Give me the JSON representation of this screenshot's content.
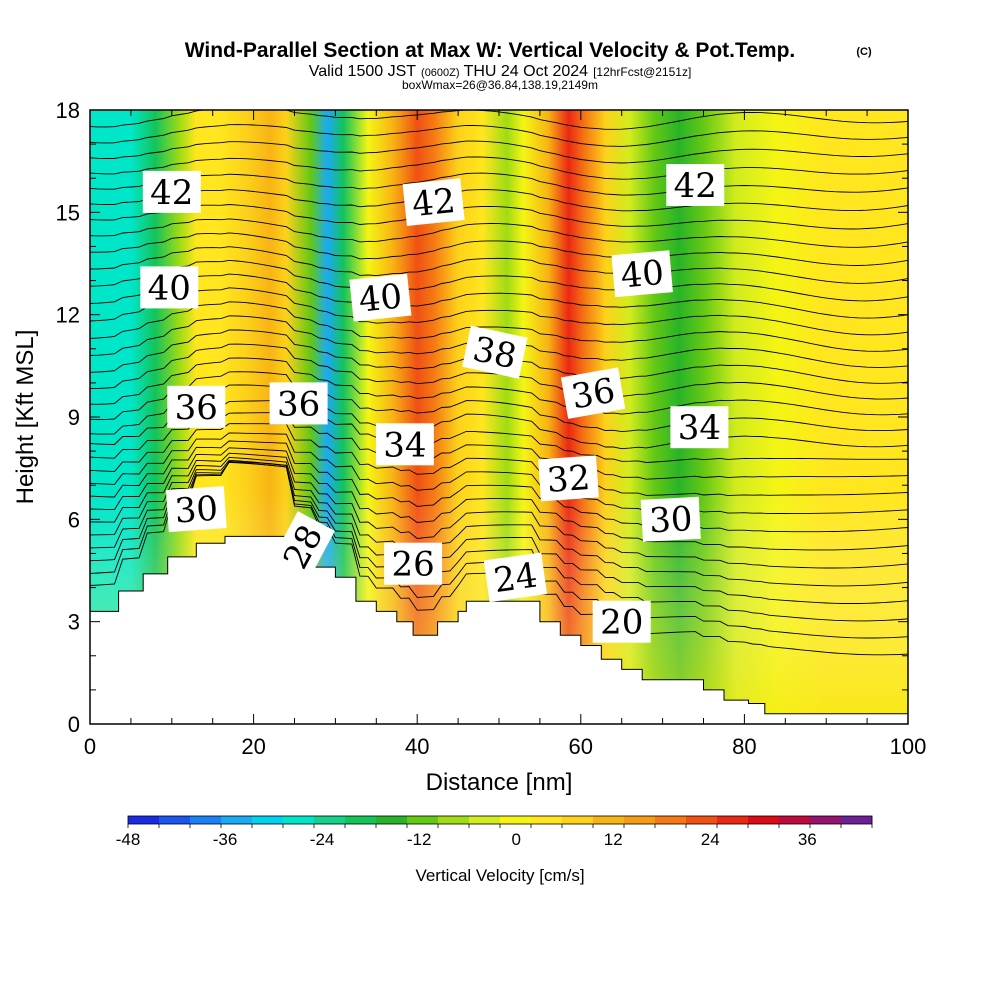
{
  "chart_data": {
    "type": "heatmap",
    "title": "Wind-Parallel Section at Max W: Vertical Velocity & Pot.Temp.",
    "title_mark": "(C)",
    "subtitle_parts": [
      "Valid 1500 JST",
      "(0600Z)",
      "THU 24 Oct 2024",
      "[12hrFcst@2151z]"
    ],
    "subtitle2": "boxWmax=26@36.84,138.19,2149m",
    "xlabel": "Distance [nm]",
    "ylabel": "Height [Kft MSL]",
    "xlim": [
      0,
      100
    ],
    "ylim": [
      0,
      18
    ],
    "x_ticks": [
      0,
      20,
      40,
      60,
      80,
      100
    ],
    "y_ticks": [
      0,
      3,
      6,
      9,
      12,
      15,
      18
    ],
    "colorbar": {
      "label": "Vertical Velocity [cm/s]",
      "range": [
        -48,
        44
      ],
      "tick_values": [
        -48,
        -36,
        -24,
        -12,
        0,
        12,
        24,
        36
      ],
      "colors": [
        "#1a2be6",
        "#1a55f0",
        "#1a80f5",
        "#1aaaf5",
        "#00d2f0",
        "#00e6c8",
        "#14d28c",
        "#14c35a",
        "#28b428",
        "#64c814",
        "#a0dc14",
        "#d2ec1e",
        "#f5f514",
        "#ffe61e",
        "#fcd21a",
        "#f8b414",
        "#f59c14",
        "#f57814",
        "#f05014",
        "#eb2814",
        "#dc0a14",
        "#be0a3c",
        "#96146e",
        "#6e1e96"
      ]
    },
    "wind_columns": [
      {
        "x": 2.5,
        "w": -28
      },
      {
        "x": 5,
        "w": -26
      },
      {
        "x": 8,
        "w": -18
      },
      {
        "x": 11,
        "w": -6
      },
      {
        "x": 13,
        "w": 2
      },
      {
        "x": 16,
        "w": 4
      },
      {
        "x": 19,
        "w": 6
      },
      {
        "x": 22,
        "w": 12
      },
      {
        "x": 24,
        "w": 6
      },
      {
        "x": 27,
        "w": -12
      },
      {
        "x": 29,
        "w": -36
      },
      {
        "x": 31,
        "w": -20
      },
      {
        "x": 34,
        "w": 0
      },
      {
        "x": 37,
        "w": 10
      },
      {
        "x": 40,
        "w": 24
      },
      {
        "x": 42,
        "w": 20
      },
      {
        "x": 45,
        "w": 8
      },
      {
        "x": 48,
        "w": 2
      },
      {
        "x": 51,
        "w": -8
      },
      {
        "x": 53,
        "w": -2
      },
      {
        "x": 56,
        "w": 10
      },
      {
        "x": 58.5,
        "w": 26
      },
      {
        "x": 60.5,
        "w": 20
      },
      {
        "x": 63,
        "w": 6
      },
      {
        "x": 66,
        "w": -4
      },
      {
        "x": 69,
        "w": -12
      },
      {
        "x": 72,
        "w": -16
      },
      {
        "x": 75,
        "w": -10
      },
      {
        "x": 79,
        "w": -4
      },
      {
        "x": 84,
        "w": 0
      },
      {
        "x": 90,
        "w": 2
      },
      {
        "x": 96,
        "w": 2
      },
      {
        "x": 100,
        "w": 2
      }
    ],
    "terrain": [
      [
        0,
        3.3
      ],
      [
        3.5,
        3.3
      ],
      [
        3.5,
        3.9
      ],
      [
        6.5,
        3.9
      ],
      [
        6.5,
        4.4
      ],
      [
        9.5,
        4.4
      ],
      [
        9.5,
        4.9
      ],
      [
        13,
        4.9
      ],
      [
        13,
        5.3
      ],
      [
        16.5,
        5.3
      ],
      [
        16.5,
        5.5
      ],
      [
        25,
        5.5
      ],
      [
        25,
        4.9
      ],
      [
        27.5,
        4.9
      ],
      [
        27.5,
        4.6
      ],
      [
        30,
        4.6
      ],
      [
        30,
        4.3
      ],
      [
        32.5,
        4.3
      ],
      [
        32.5,
        3.6
      ],
      [
        35,
        3.6
      ],
      [
        35,
        3.3
      ],
      [
        37.5,
        3.3
      ],
      [
        37.5,
        3.0
      ],
      [
        39.5,
        3.0
      ],
      [
        39.5,
        2.6
      ],
      [
        42.5,
        2.6
      ],
      [
        42.5,
        3.0
      ],
      [
        45,
        3.0
      ],
      [
        45,
        3.3
      ],
      [
        46,
        3.3
      ],
      [
        46,
        3.6
      ],
      [
        55,
        3.6
      ],
      [
        55,
        3.0
      ],
      [
        57.5,
        3.0
      ],
      [
        57.5,
        2.6
      ],
      [
        60,
        2.6
      ],
      [
        60,
        2.3
      ],
      [
        62.5,
        2.3
      ],
      [
        62.5,
        1.9
      ],
      [
        65,
        1.9
      ],
      [
        65,
        1.6
      ],
      [
        67.5,
        1.6
      ],
      [
        67.5,
        1.3
      ],
      [
        75,
        1.3
      ],
      [
        75,
        1.0
      ],
      [
        77.5,
        1.0
      ],
      [
        77.5,
        0.7
      ],
      [
        80.5,
        0.7
      ],
      [
        80.5,
        0.6
      ],
      [
        82.5,
        0.6
      ],
      [
        82.5,
        0.3
      ],
      [
        100,
        0.3
      ]
    ],
    "contour_labels": [
      {
        "text": "42",
        "x": 10,
        "y": 15.6,
        "rot": 0
      },
      {
        "text": "40",
        "x": 9.7,
        "y": 12.8,
        "rot": 0
      },
      {
        "text": "36",
        "x": 13,
        "y": 9.3,
        "rot": 0
      },
      {
        "text": "30",
        "x": 13,
        "y": 6.3,
        "rot": -4
      },
      {
        "text": "42",
        "x": 42,
        "y": 15.3,
        "rot": -6
      },
      {
        "text": "40",
        "x": 35.5,
        "y": 12.5,
        "rot": -6
      },
      {
        "text": "36",
        "x": 25.5,
        "y": 9.4,
        "rot": 0
      },
      {
        "text": "38",
        "x": 49.5,
        "y": 10.9,
        "rot": 12
      },
      {
        "text": "34",
        "x": 38.5,
        "y": 8.2,
        "rot": 0
      },
      {
        "text": "28",
        "x": 26,
        "y": 5.2,
        "rot": -62
      },
      {
        "text": "26",
        "x": 39.5,
        "y": 4.7,
        "rot": 0
      },
      {
        "text": "24",
        "x": 52,
        "y": 4.3,
        "rot": -8
      },
      {
        "text": "36",
        "x": 61.5,
        "y": 9.7,
        "rot": -10
      },
      {
        "text": "32",
        "x": 58.5,
        "y": 7.2,
        "rot": -4
      },
      {
        "text": "42",
        "x": 74,
        "y": 15.8,
        "rot": 0
      },
      {
        "text": "40",
        "x": 67.5,
        "y": 13.2,
        "rot": -5
      },
      {
        "text": "34",
        "x": 74.5,
        "y": 8.7,
        "rot": 0
      },
      {
        "text": "30",
        "x": 71,
        "y": 6.0,
        "rot": -3
      },
      {
        "text": "20",
        "x": 65,
        "y": 3.0,
        "rot": 0
      }
    ]
  }
}
